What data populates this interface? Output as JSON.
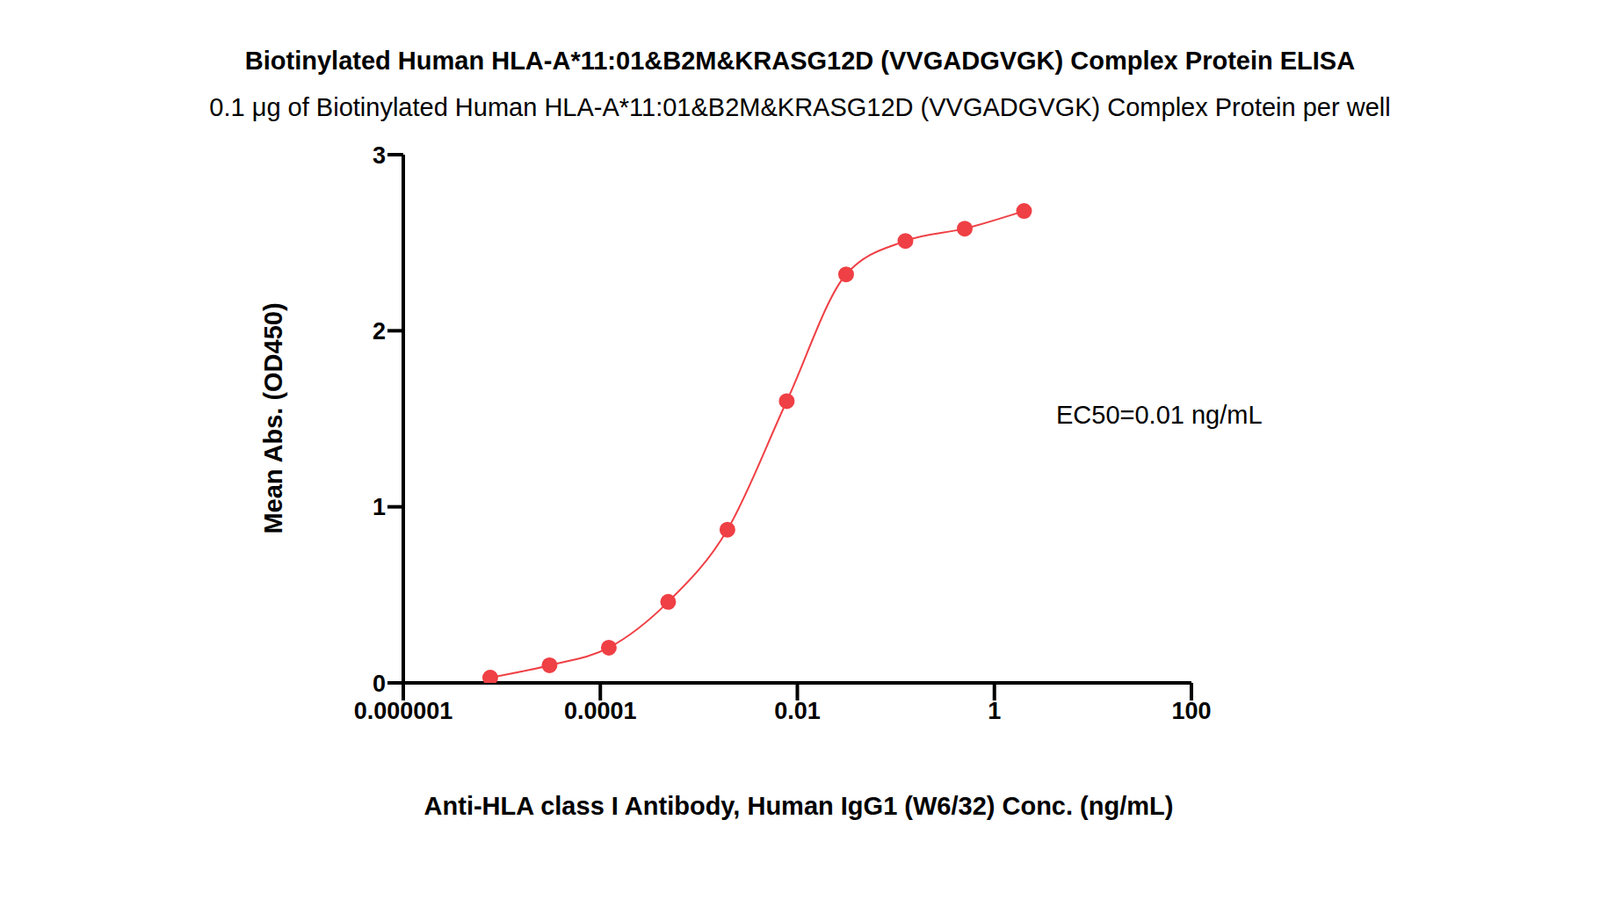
{
  "chart_data": {
    "type": "line",
    "title": "Biotinylated Human HLA-A*11:01&B2M&KRASG12D (VVGADGVGK) Complex Protein ELISA",
    "subtitle": "0.1 μg of Biotinylated Human HLA-A*11:01&B2M&KRASG12D (VVGADGVGK) Complex Protein per well",
    "x_label": "Anti-HLA class I Antibody, Human IgG1 (W6/32) Conc. (ng/mL)",
    "y_label": "Mean Abs. (OD450)",
    "annotation": "EC50=0.01 ng/mL",
    "x": [
      7.63e-06,
      3.05e-05,
      0.000122,
      0.000488,
      0.00195,
      0.0078,
      0.03125,
      0.125,
      0.5,
      2
    ],
    "values": [
      0.03,
      0.1,
      0.2,
      0.46,
      0.87,
      1.6,
      2.32,
      2.51,
      2.58,
      2.68
    ],
    "color": "#ef4045",
    "log": "x",
    "marker": "circle",
    "line_style": "solid",
    "xlim": [
      1e-06,
      100
    ],
    "xticks": [
      1e-06,
      0.0001,
      0.01,
      1,
      100
    ],
    "ylim": [
      0,
      3
    ],
    "yticks": [
      0,
      1,
      2,
      3
    ],
    "grid": false
  }
}
